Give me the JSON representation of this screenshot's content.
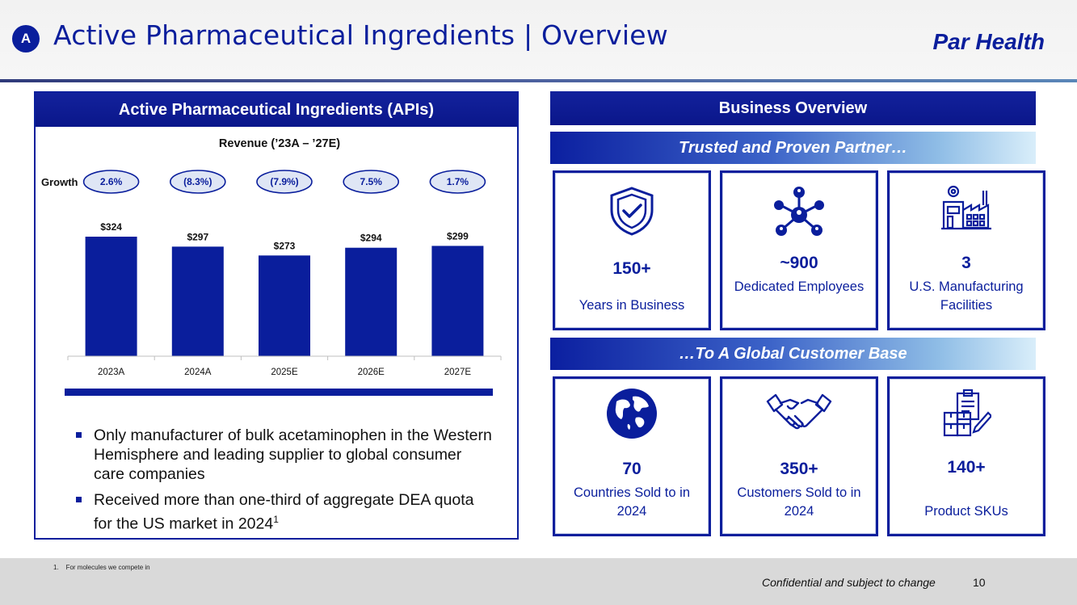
{
  "header": {
    "badge": "A",
    "title": "Active Pharmaceutical Ingredients | Overview",
    "brand": "Par Health"
  },
  "left_panel": {
    "title": "Active Pharmaceutical Ingredients (APIs)",
    "bullets": [
      "Only manufacturer of bulk acetaminophen in the Western Hemisphere and leading supplier to global consumer care companies",
      "Received more than one-third of aggregate DEA quota for the US market in 2024"
    ],
    "bullet2_footnote_ref": "1"
  },
  "chart_data": {
    "type": "bar",
    "title": "Revenue (’23A – ’27E)",
    "growth_label": "Growth",
    "categories": [
      "2023A",
      "2024A",
      "2025E",
      "2026E",
      "2027E"
    ],
    "values": [
      324,
      297,
      273,
      294,
      299
    ],
    "value_labels": [
      "$324",
      "$297",
      "$273",
      "$294",
      "$299"
    ],
    "growth": [
      "2.6%",
      "(8.3%)",
      "(7.9%)",
      "7.5%",
      "1.7%"
    ],
    "ylim": [
      0,
      324
    ],
    "xlabel": "",
    "ylabel": "",
    "bar_color": "#0a1e9c"
  },
  "right_panel": {
    "title": "Business Overview",
    "ribbon_top": "Trusted and Proven Partner…",
    "ribbon_bottom": "…To A Global Customer Base",
    "cards_top": [
      {
        "icon": "shield-check-icon",
        "value": "150+",
        "label": "Years in Business"
      },
      {
        "icon": "people-network-icon",
        "value": "~900",
        "label": "Dedicated Employees"
      },
      {
        "icon": "factory-icon",
        "value": "3",
        "label": "U.S. Manufacturing Facilities"
      }
    ],
    "cards_bottom": [
      {
        "icon": "globe-icon",
        "value": "70",
        "label": "Countries Sold to in 2024"
      },
      {
        "icon": "handshake-icon",
        "value": "350+",
        "label": "Customers Sold to in 2024"
      },
      {
        "icon": "clipboard-boxes-icon",
        "value": "140+",
        "label": "Product SKUs"
      }
    ]
  },
  "footer": {
    "footnote": "1.    For molecules we compete in",
    "confidential": "Confidential and subject to change",
    "page_number": "10"
  },
  "colors": {
    "primary": "#0a1e9c",
    "footer_bg": "#d9d9d9"
  }
}
